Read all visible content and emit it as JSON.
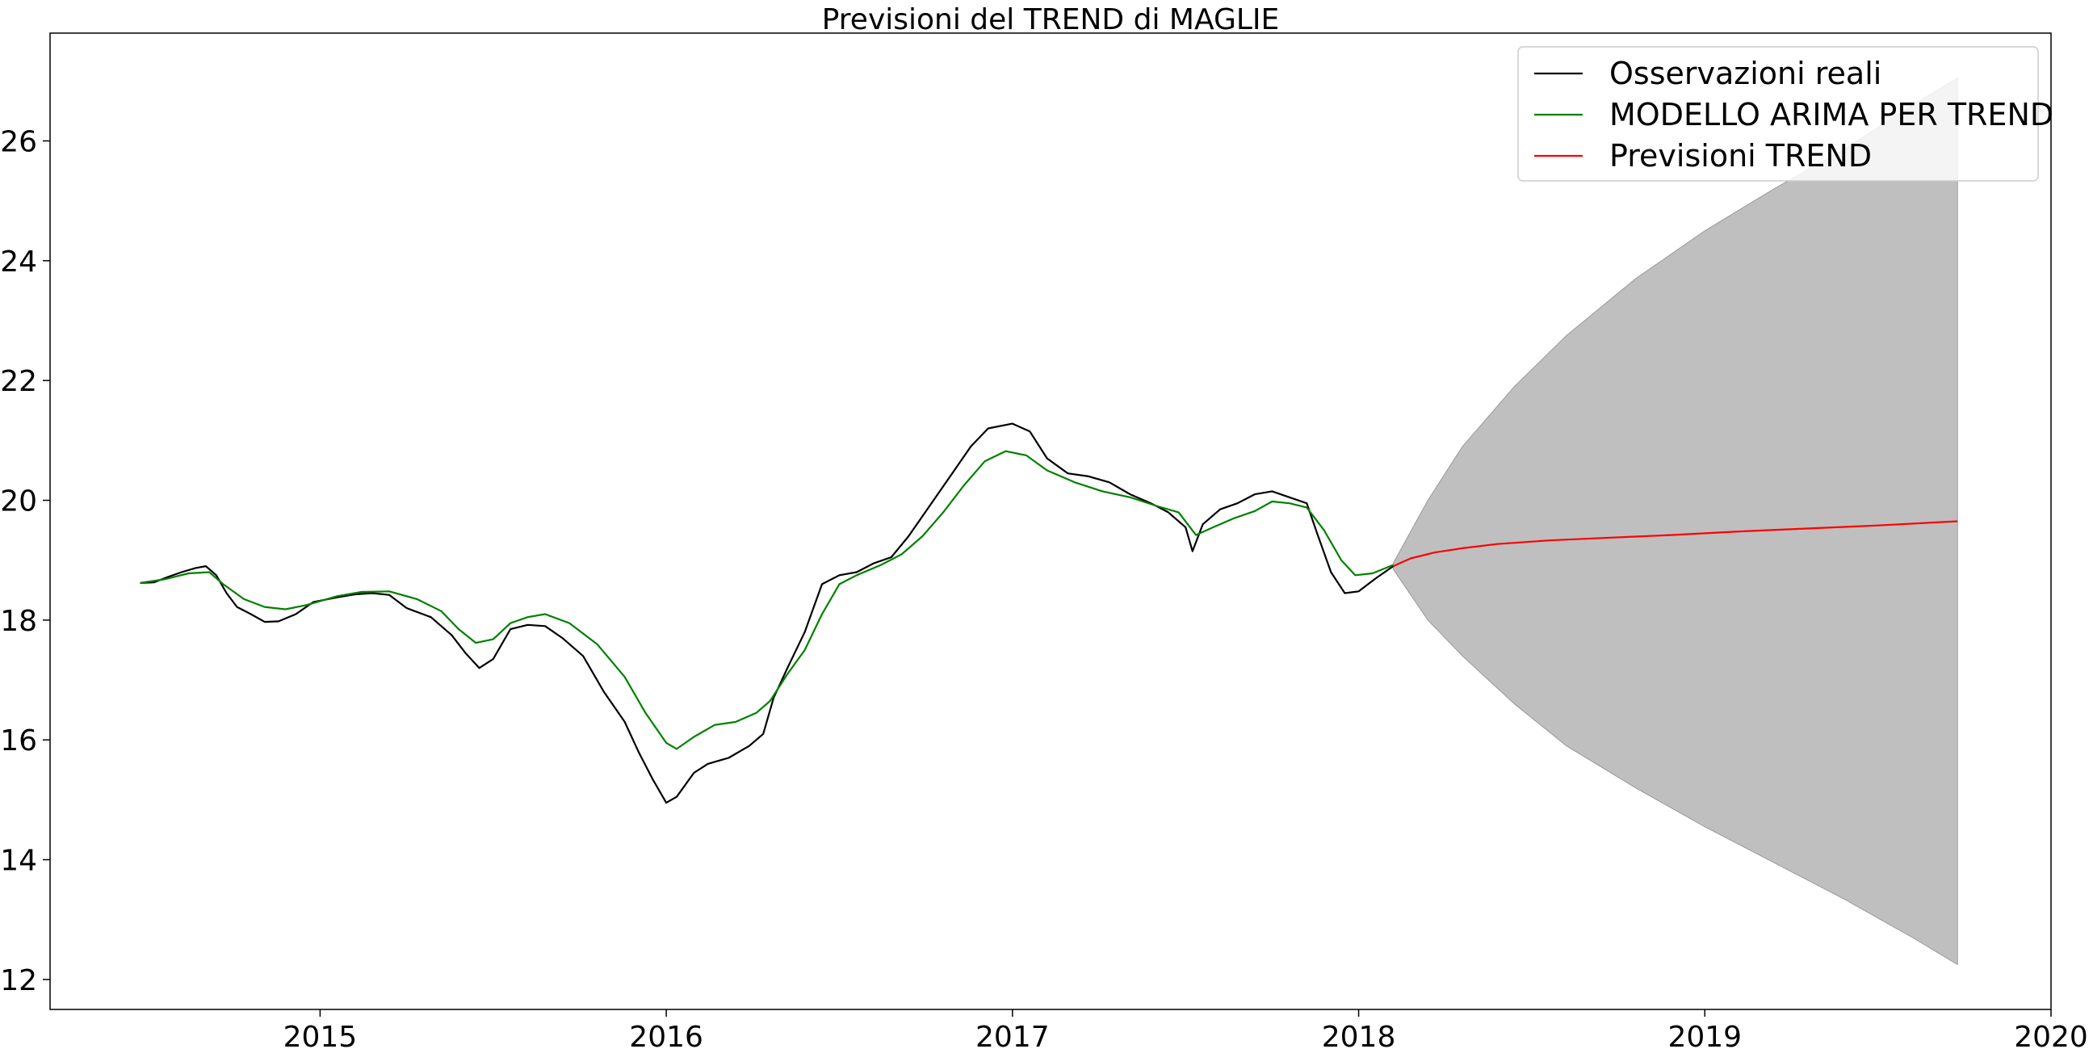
{
  "chart_data": {
    "type": "line",
    "title": "Previsioni del TREND di MAGLIE",
    "xlabel": "",
    "ylabel": "",
    "xlim": [
      2014.22,
      2020.0
    ],
    "ylim": [
      11.5,
      27.8
    ],
    "x_ticks": [
      2015,
      2016,
      2017,
      2018,
      2019,
      2020
    ],
    "x_tick_labels": [
      "2015",
      "2016",
      "2017",
      "2018",
      "2019",
      "2020"
    ],
    "y_ticks": [
      12,
      14,
      16,
      18,
      20,
      22,
      24,
      26
    ],
    "y_tick_labels": [
      "12",
      "14",
      "16",
      "18",
      "20",
      "22",
      "24",
      "26"
    ],
    "grid": false,
    "legend_position": "top-right",
    "series": [
      {
        "name": "Osservazioni reali",
        "color": "#000000",
        "points": [
          [
            2014.48,
            18.62
          ],
          [
            2014.52,
            18.63
          ],
          [
            2014.56,
            18.72
          ],
          [
            2014.6,
            18.8
          ],
          [
            2014.64,
            18.87
          ],
          [
            2014.67,
            18.9
          ],
          [
            2014.7,
            18.75
          ],
          [
            2014.73,
            18.45
          ],
          [
            2014.76,
            18.22
          ],
          [
            2014.8,
            18.1
          ],
          [
            2014.84,
            17.97
          ],
          [
            2014.88,
            17.98
          ],
          [
            2014.93,
            18.1
          ],
          [
            2014.98,
            18.3
          ],
          [
            2015.05,
            18.38
          ],
          [
            2015.1,
            18.43
          ],
          [
            2015.15,
            18.45
          ],
          [
            2015.2,
            18.42
          ],
          [
            2015.25,
            18.2
          ],
          [
            2015.32,
            18.05
          ],
          [
            2015.38,
            17.75
          ],
          [
            2015.42,
            17.45
          ],
          [
            2015.46,
            17.2
          ],
          [
            2015.5,
            17.35
          ],
          [
            2015.55,
            17.85
          ],
          [
            2015.6,
            17.92
          ],
          [
            2015.65,
            17.9
          ],
          [
            2015.7,
            17.7
          ],
          [
            2015.76,
            17.4
          ],
          [
            2015.82,
            16.8
          ],
          [
            2015.88,
            16.3
          ],
          [
            2015.92,
            15.8
          ],
          [
            2015.96,
            15.35
          ],
          [
            2016.0,
            14.95
          ],
          [
            2016.03,
            15.05
          ],
          [
            2016.08,
            15.45
          ],
          [
            2016.12,
            15.6
          ],
          [
            2016.18,
            15.7
          ],
          [
            2016.24,
            15.9
          ],
          [
            2016.28,
            16.1
          ],
          [
            2016.31,
            16.7
          ],
          [
            2016.35,
            17.2
          ],
          [
            2016.4,
            17.8
          ],
          [
            2016.45,
            18.6
          ],
          [
            2016.5,
            18.75
          ],
          [
            2016.55,
            18.8
          ],
          [
            2016.6,
            18.95
          ],
          [
            2016.65,
            19.05
          ],
          [
            2016.7,
            19.4
          ],
          [
            2016.76,
            19.9
          ],
          [
            2016.82,
            20.4
          ],
          [
            2016.88,
            20.9
          ],
          [
            2016.93,
            21.2
          ],
          [
            2017.0,
            21.28
          ],
          [
            2017.05,
            21.15
          ],
          [
            2017.1,
            20.7
          ],
          [
            2017.16,
            20.45
          ],
          [
            2017.22,
            20.4
          ],
          [
            2017.28,
            20.3
          ],
          [
            2017.34,
            20.1
          ],
          [
            2017.4,
            19.95
          ],
          [
            2017.45,
            19.8
          ],
          [
            2017.5,
            19.55
          ],
          [
            2017.52,
            19.15
          ],
          [
            2017.55,
            19.6
          ],
          [
            2017.6,
            19.85
          ],
          [
            2017.65,
            19.95
          ],
          [
            2017.7,
            20.1
          ],
          [
            2017.75,
            20.15
          ],
          [
            2017.8,
            20.05
          ],
          [
            2017.85,
            19.95
          ],
          [
            2017.88,
            19.45
          ],
          [
            2017.92,
            18.8
          ],
          [
            2017.96,
            18.45
          ],
          [
            2018.0,
            18.48
          ],
          [
            2018.05,
            18.7
          ],
          [
            2018.1,
            18.9
          ]
        ]
      },
      {
        "name": "MODELLO ARIMA PER TREND",
        "color": "#008000",
        "points": [
          [
            2014.48,
            18.62
          ],
          [
            2014.55,
            18.68
          ],
          [
            2014.62,
            18.78
          ],
          [
            2014.68,
            18.8
          ],
          [
            2014.72,
            18.6
          ],
          [
            2014.78,
            18.35
          ],
          [
            2014.84,
            18.22
          ],
          [
            2014.9,
            18.18
          ],
          [
            2014.96,
            18.25
          ],
          [
            2015.05,
            18.4
          ],
          [
            2015.12,
            18.47
          ],
          [
            2015.2,
            18.48
          ],
          [
            2015.28,
            18.35
          ],
          [
            2015.35,
            18.15
          ],
          [
            2015.4,
            17.85
          ],
          [
            2015.45,
            17.62
          ],
          [
            2015.5,
            17.68
          ],
          [
            2015.55,
            17.95
          ],
          [
            2015.6,
            18.05
          ],
          [
            2015.65,
            18.1
          ],
          [
            2015.72,
            17.95
          ],
          [
            2015.8,
            17.6
          ],
          [
            2015.88,
            17.05
          ],
          [
            2015.94,
            16.45
          ],
          [
            2016.0,
            15.95
          ],
          [
            2016.03,
            15.85
          ],
          [
            2016.08,
            16.05
          ],
          [
            2016.14,
            16.25
          ],
          [
            2016.2,
            16.3
          ],
          [
            2016.26,
            16.45
          ],
          [
            2016.3,
            16.65
          ],
          [
            2016.35,
            17.1
          ],
          [
            2016.4,
            17.5
          ],
          [
            2016.45,
            18.1
          ],
          [
            2016.5,
            18.6
          ],
          [
            2016.55,
            18.75
          ],
          [
            2016.62,
            18.92
          ],
          [
            2016.68,
            19.1
          ],
          [
            2016.74,
            19.4
          ],
          [
            2016.8,
            19.8
          ],
          [
            2016.86,
            20.25
          ],
          [
            2016.92,
            20.65
          ],
          [
            2016.98,
            20.82
          ],
          [
            2017.04,
            20.75
          ],
          [
            2017.1,
            20.5
          ],
          [
            2017.18,
            20.3
          ],
          [
            2017.26,
            20.15
          ],
          [
            2017.34,
            20.05
          ],
          [
            2017.42,
            19.9
          ],
          [
            2017.48,
            19.8
          ],
          [
            2017.53,
            19.42
          ],
          [
            2017.58,
            19.55
          ],
          [
            2017.64,
            19.7
          ],
          [
            2017.7,
            19.82
          ],
          [
            2017.75,
            19.98
          ],
          [
            2017.8,
            19.95
          ],
          [
            2017.85,
            19.88
          ],
          [
            2017.9,
            19.5
          ],
          [
            2017.95,
            19.0
          ],
          [
            2017.99,
            18.75
          ],
          [
            2018.04,
            18.78
          ],
          [
            2018.1,
            18.92
          ]
        ]
      },
      {
        "name": "Previsioni TREND",
        "color": "#ff0000",
        "points": [
          [
            2018.1,
            18.9
          ],
          [
            2018.15,
            19.03
          ],
          [
            2018.22,
            19.13
          ],
          [
            2018.3,
            19.2
          ],
          [
            2018.4,
            19.27
          ],
          [
            2018.55,
            19.33
          ],
          [
            2018.7,
            19.37
          ],
          [
            2018.9,
            19.42
          ],
          [
            2019.1,
            19.48
          ],
          [
            2019.3,
            19.53
          ],
          [
            2019.5,
            19.58
          ],
          [
            2019.73,
            19.65
          ]
        ]
      }
    ],
    "confidence_band": {
      "color": "#bfbfbf",
      "x": [
        2018.1,
        2018.2,
        2018.3,
        2018.45,
        2018.6,
        2018.8,
        2019.0,
        2019.2,
        2019.4,
        2019.6,
        2019.73
      ],
      "upper": [
        18.95,
        20.0,
        20.9,
        21.9,
        22.75,
        23.7,
        24.5,
        25.2,
        25.85,
        26.6,
        27.05
      ],
      "lower": [
        18.85,
        18.0,
        17.4,
        16.6,
        15.9,
        15.2,
        14.55,
        13.95,
        13.35,
        12.7,
        12.25
      ]
    }
  }
}
